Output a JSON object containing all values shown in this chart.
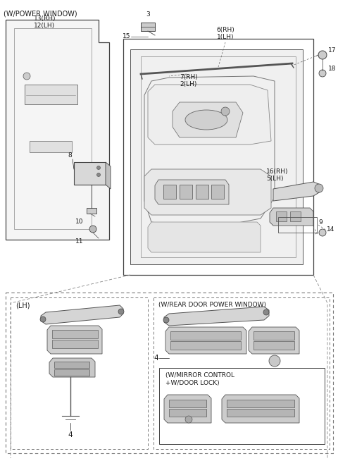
{
  "bg_color": "#ffffff",
  "lc": "#1a1a1a",
  "gray1": "#aaaaaa",
  "gray2": "#cccccc",
  "gray3": "#e8e8e8",
  "figsize": [
    4.8,
    6.54
  ],
  "dpi": 100,
  "labels": {
    "power_window": "(W/POWER WINDOW)",
    "lh": "(LH)",
    "rear_door": "(W/REAR DOOR POWER WINDOW)",
    "mirror_control": "(W/MIRROR CONTROL\n+W/DOOR LOCK)"
  }
}
